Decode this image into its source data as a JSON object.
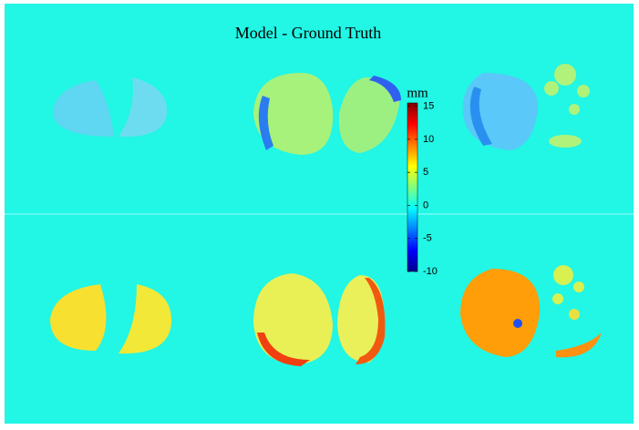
{
  "chart_data": {
    "type": "colorbar",
    "title": "Model - Ground Truth",
    "colorbar_label": "mm",
    "clim": [
      -10,
      15.5
    ],
    "cticks": [
      15,
      10,
      5,
      0,
      -5,
      -10
    ],
    "colormap": "jet"
  }
}
